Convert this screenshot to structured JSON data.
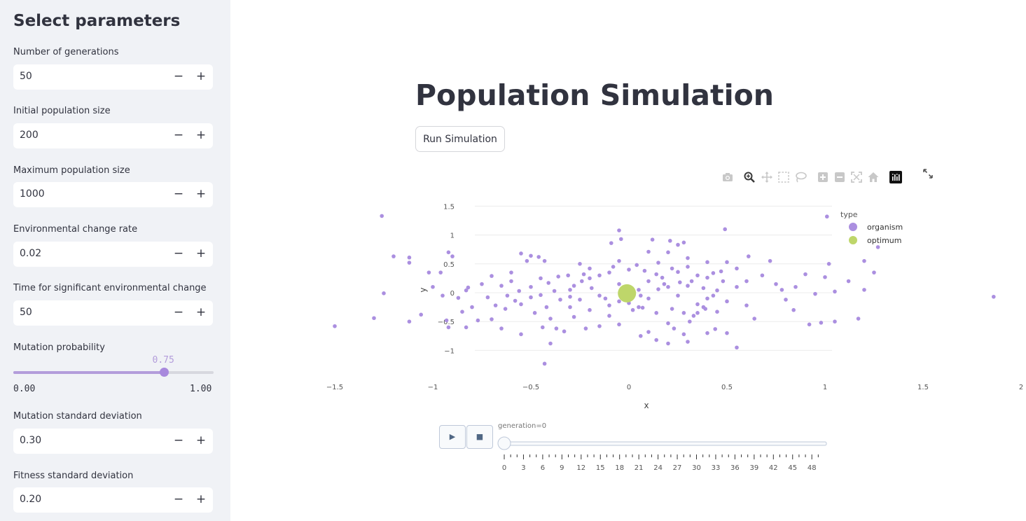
{
  "sidebar": {
    "title": "Select parameters",
    "inputs": [
      {
        "label": "Number of generations",
        "value": "50"
      },
      {
        "label": "Initial population size",
        "value": "200"
      },
      {
        "label": "Maximum population size",
        "value": "1000"
      },
      {
        "label": "Environmental change rate",
        "value": "0.02"
      },
      {
        "label": "Time for significant environmental change",
        "value": "50"
      },
      {
        "label": "Mutation probability"
      },
      {
        "label": "Mutation standard deviation",
        "value": "0.30"
      },
      {
        "label": "Fitness standard deviation",
        "value": "0.20"
      }
    ],
    "slider": {
      "value": 0.75,
      "value_text": "0.75",
      "min": "0.00",
      "max": "1.00"
    },
    "minus_glyph": "−",
    "plus_glyph": "+"
  },
  "main": {
    "title": "Population Simulation",
    "run_button": "Run Simulation"
  },
  "modebar": {
    "icons": [
      "camera-icon",
      "zoom-icon",
      "pan-icon",
      "box-select-icon",
      "lasso-select-icon",
      "zoom-in-icon",
      "zoom-out-icon",
      "autoscale-icon",
      "reset-axes-icon",
      "plotly-logo-icon"
    ],
    "active": "zoom-icon",
    "expand_icon": "fullscreen-icon"
  },
  "colors": {
    "organism": "#ab8fe0",
    "optimum": "#bed66a",
    "sidebar_bg": "#f0f2f6",
    "text": "#31333f"
  },
  "chart_data": {
    "type": "scatter",
    "xlabel": "x",
    "ylabel": "y",
    "xlim": [
      -1.64,
      2.07
    ],
    "ylim": [
      -1.35,
      1.63
    ],
    "xticks": [
      -1.5,
      -1,
      -0.5,
      0,
      0.5,
      1,
      1.5,
      2
    ],
    "xtick_labels": [
      "−1.5",
      "−1",
      "−0.5",
      "0",
      "0.5",
      "1",
      "1.5",
      "2"
    ],
    "yticks": [
      -1,
      -0.5,
      0,
      0.5,
      1,
      1.5
    ],
    "ytick_labels": [
      "−1",
      "−0.5",
      "0",
      "0.5",
      "1",
      "1.5"
    ],
    "grid": "horizontal",
    "legend_title": "type",
    "legend_position": "top-right",
    "series": [
      {
        "name": "organism",
        "points": [
          [
            -1.26,
            1.33
          ],
          [
            1.01,
            1.32
          ],
          [
            0.49,
            1.1
          ],
          [
            -0.05,
            1.08
          ],
          [
            -0.09,
            0.86
          ],
          [
            -0.04,
            0.93
          ],
          [
            1.27,
            0.79
          ],
          [
            -1.2,
            0.63
          ],
          [
            -0.9,
            0.63
          ],
          [
            -1.12,
            0.61
          ],
          [
            -1.12,
            0.52
          ],
          [
            -0.55,
            0.68
          ],
          [
            -0.5,
            0.64
          ],
          [
            -0.46,
            0.62
          ],
          [
            -0.52,
            0.55
          ],
          [
            -0.43,
            0.55
          ],
          [
            0.1,
            0.71
          ],
          [
            0.2,
            0.7
          ],
          [
            0.25,
            0.83
          ],
          [
            0.28,
            0.87
          ],
          [
            0.12,
            0.92
          ],
          [
            0.21,
            0.9
          ],
          [
            0.61,
            0.63
          ],
          [
            1.02,
            0.5
          ],
          [
            1.2,
            0.55
          ],
          [
            -1.02,
            0.35
          ],
          [
            -0.96,
            0.35
          ],
          [
            -0.82,
            0.09
          ],
          [
            -0.83,
            0.04
          ],
          [
            -0.7,
            0.29
          ],
          [
            -0.65,
            0.12
          ],
          [
            -0.72,
            -0.08
          ],
          [
            -0.6,
            0.2
          ],
          [
            -0.45,
            0.25
          ],
          [
            -0.41,
            0.17
          ],
          [
            -0.36,
            0.28
          ],
          [
            -0.31,
            0.3
          ],
          [
            -0.23,
            0.32
          ],
          [
            -0.28,
            0.12
          ],
          [
            -0.24,
            0.2
          ],
          [
            -0.3,
            0.05
          ],
          [
            -0.19,
            0.08
          ],
          [
            -0.2,
            0.25
          ],
          [
            -0.1,
            0.35
          ],
          [
            -0.08,
            0.45
          ],
          [
            0,
            0.4
          ],
          [
            0.04,
            0.48
          ],
          [
            0.08,
            0.38
          ],
          [
            0.14,
            0.32
          ],
          [
            0.17,
            0.26
          ],
          [
            0.22,
            0.42
          ],
          [
            0.25,
            0.36
          ],
          [
            0.3,
            0.45
          ],
          [
            0.35,
            0.3
          ],
          [
            0.4,
            0.26
          ],
          [
            0.43,
            0.34
          ],
          [
            0.47,
            0.37
          ],
          [
            0.5,
            0.53
          ],
          [
            0.55,
            0.42
          ],
          [
            0.4,
            0.53
          ],
          [
            -1.25,
            -0.01
          ],
          [
            -0.87,
            -0.09
          ],
          [
            -0.68,
            -0.22
          ],
          [
            -0.58,
            -0.14
          ],
          [
            -0.5,
            -0.08
          ],
          [
            -0.45,
            -0.04
          ],
          [
            -0.38,
            0.03
          ],
          [
            -0.3,
            -0.07
          ],
          [
            -0.25,
            -0.12
          ],
          [
            -0.15,
            -0.05
          ],
          [
            -0.05,
            -0.15
          ],
          [
            0.05,
            -0.25
          ],
          [
            0.1,
            -0.1
          ],
          [
            0.15,
            0.06
          ],
          [
            0.2,
            0.1
          ],
          [
            0.25,
            -0.05
          ],
          [
            0.3,
            0.12
          ],
          [
            0.35,
            -0.2
          ],
          [
            0.4,
            -0.1
          ],
          [
            0.45,
            0.04
          ],
          [
            0.5,
            -0.15
          ],
          [
            0.55,
            0.1
          ],
          [
            0.75,
            0.15
          ],
          [
            0.78,
            0.05
          ],
          [
            0.85,
            0.1
          ],
          [
            0.9,
            0.32
          ],
          [
            0.95,
            -0.02
          ],
          [
            1,
            0.27
          ],
          [
            1.05,
            0.02
          ],
          [
            1.12,
            0.2
          ],
          [
            1.2,
            0.05
          ],
          [
            1.25,
            0.35
          ],
          [
            1.86,
            -0.07
          ],
          [
            -1.3,
            -0.44
          ],
          [
            -1.12,
            -0.5
          ],
          [
            -1.06,
            -0.38
          ],
          [
            -0.93,
            -0.48
          ],
          [
            -0.92,
            -0.6
          ],
          [
            -0.85,
            -0.33
          ],
          [
            -0.77,
            -0.48
          ],
          [
            -0.7,
            -0.46
          ],
          [
            -0.63,
            -0.28
          ],
          [
            -0.55,
            -0.2
          ],
          [
            -0.48,
            -0.35
          ],
          [
            -0.44,
            -0.6
          ],
          [
            -0.4,
            -0.45
          ],
          [
            -0.37,
            -0.62
          ],
          [
            -0.33,
            -0.67
          ],
          [
            -0.28,
            -0.42
          ],
          [
            -0.22,
            -0.62
          ],
          [
            -0.15,
            -0.58
          ],
          [
            -0.1,
            -0.4
          ],
          [
            -0.05,
            -0.55
          ],
          [
            0.02,
            -0.3
          ],
          [
            0.06,
            -0.75
          ],
          [
            0.1,
            -0.68
          ],
          [
            0.14,
            -0.82
          ],
          [
            0.2,
            -0.53
          ],
          [
            0.23,
            -0.62
          ],
          [
            0.28,
            -0.72
          ],
          [
            0.31,
            -0.5
          ],
          [
            0.35,
            -0.35
          ],
          [
            0.39,
            -0.28
          ],
          [
            0.44,
            -0.63
          ],
          [
            0.5,
            -0.7
          ],
          [
            0.6,
            -0.22
          ],
          [
            0.64,
            -0.45
          ],
          [
            0.92,
            -0.55
          ],
          [
            0.98,
            -0.52
          ],
          [
            1.05,
            -0.5
          ],
          [
            1.17,
            -0.45
          ],
          [
            0.84,
            -0.3
          ],
          [
            0.8,
            -0.12
          ],
          [
            -0.83,
            -0.6
          ],
          [
            -0.65,
            -0.62
          ],
          [
            -0.55,
            -0.72
          ],
          [
            -0.4,
            -0.88
          ],
          [
            -0.43,
            -1.23
          ],
          [
            0.2,
            -0.88
          ],
          [
            0.3,
            -0.85
          ],
          [
            0.4,
            -0.7
          ],
          [
            0.55,
            -0.95
          ],
          [
            -1.5,
            -0.58
          ],
          [
            -0.92,
            0.7
          ],
          [
            -0.6,
            0.35
          ],
          [
            -0.3,
            -0.25
          ],
          [
            -0.2,
            -0.3
          ],
          [
            -0.1,
            -0.22
          ],
          [
            0,
            -0.18
          ],
          [
            0.07,
            -0.26
          ],
          [
            0.14,
            -0.35
          ],
          [
            0.22,
            -0.28
          ],
          [
            0.28,
            -0.35
          ],
          [
            0.33,
            -0.4
          ],
          [
            0.05,
            0.05
          ],
          [
            -0.05,
            0.15
          ],
          [
            0.1,
            0.2
          ],
          [
            -0.15,
            0.3
          ],
          [
            0.18,
            0.15
          ],
          [
            0.26,
            0.18
          ],
          [
            0.32,
            0.2
          ],
          [
            0.38,
            0.08
          ],
          [
            0.43,
            -0.05
          ],
          [
            0.48,
            0.2
          ],
          [
            -0.35,
            -0.12
          ],
          [
            -0.42,
            -0.25
          ],
          [
            -0.5,
            0.1
          ],
          [
            -0.56,
            0.03
          ],
          [
            -0.62,
            -0.05
          ],
          [
            -0.75,
            0.15
          ],
          [
            -0.8,
            -0.25
          ],
          [
            -0.95,
            -0.05
          ],
          [
            -1.0,
            0.1
          ],
          [
            0.6,
            0.2
          ],
          [
            0.68,
            0.3
          ],
          [
            0.72,
            0.55
          ],
          [
            0.3,
            0.6
          ],
          [
            0.15,
            0.52
          ],
          [
            -0.05,
            0.55
          ],
          [
            -0.2,
            0.42
          ],
          [
            -0.25,
            0.5
          ],
          [
            0.06,
            -0.05
          ],
          [
            -0.12,
            -0.1
          ],
          [
            0.38,
            -0.25
          ],
          [
            0.45,
            -0.33
          ]
        ]
      },
      {
        "name": "optimum",
        "points": [
          [
            -0.01,
            -0.01
          ]
        ]
      }
    ]
  },
  "slider_anim": {
    "label": "generation=0",
    "value": 0,
    "play_glyph": "▶",
    "stop_glyph": "■",
    "tick_labels": [
      "0",
      "3",
      "6",
      "9",
      "12",
      "15",
      "18",
      "21",
      "24",
      "27",
      "30",
      "33",
      "36",
      "39",
      "42",
      "45",
      "48"
    ],
    "step_count": 50
  }
}
